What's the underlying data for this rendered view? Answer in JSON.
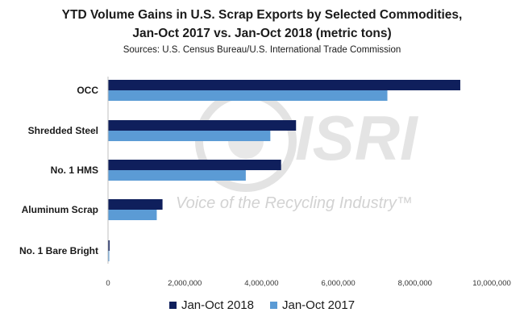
{
  "watermark": {
    "logo_text": "ISRI",
    "tagline": "Voice of the Recycling Industry™"
  },
  "chart_data": {
    "type": "bar",
    "orientation": "horizontal",
    "title": "YTD Volume Gains in U.S. Scrap Exports by Selected Commodities,",
    "title_line2": "Jan-Oct 2017 vs. Jan-Oct 2018 (metric tons)",
    "subtitle": "Sources: U.S. Census Bureau/U.S. International Trade Commission",
    "categories": [
      "OCC",
      "Shredded Steel",
      "No. 1 HMS",
      "Aluminum Scrap",
      "No. 1 Bare Bright"
    ],
    "series": [
      {
        "name": "Jan-Oct 2018",
        "color": "#0f1f5c",
        "values": [
          9180000,
          4900000,
          4510000,
          1420000,
          40000
        ]
      },
      {
        "name": "Jan-Oct 2017",
        "color": "#5b9bd5",
        "values": [
          7280000,
          4230000,
          3590000,
          1270000,
          25000
        ]
      }
    ],
    "xlim": [
      0,
      10000000
    ],
    "xticks": [
      0,
      2000000,
      4000000,
      6000000,
      8000000,
      10000000
    ],
    "xtick_labels": [
      "0",
      "2,000,000",
      "4,000,000",
      "6,000,000",
      "8,000,000",
      "10,000,000"
    ],
    "grid": false,
    "legend_position": "bottom"
  }
}
